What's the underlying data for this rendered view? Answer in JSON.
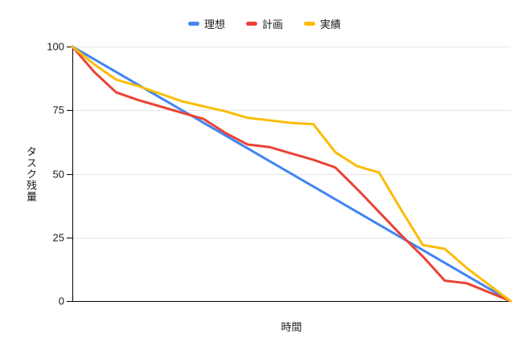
{
  "chart_data": {
    "type": "line",
    "title": "",
    "xlabel": "時間",
    "ylabel": "タスク残量",
    "x": [
      0,
      1,
      2,
      3,
      4,
      5,
      6,
      7,
      8,
      9,
      10,
      11,
      12,
      13,
      14,
      15,
      16,
      17,
      18,
      19,
      20
    ],
    "x_tick_labels_visible": false,
    "y_ticks": [
      0,
      25,
      50,
      75,
      100
    ],
    "ylim": [
      0,
      100
    ],
    "grid": true,
    "legend_position": "top",
    "series": [
      {
        "name": "理想",
        "color": "#4285F4",
        "values": [
          100,
          95,
          90,
          85,
          80,
          75,
          70,
          65,
          60,
          55,
          50,
          45,
          40,
          35,
          30,
          25,
          20,
          15,
          10,
          5,
          0
        ]
      },
      {
        "name": "計画",
        "color": "#EA4335",
        "values": [
          100,
          90,
          82,
          79,
          76.5,
          74,
          71.5,
          66,
          61.5,
          60.5,
          58,
          55.5,
          52.5,
          44,
          35,
          26,
          17.5,
          8,
          7,
          3.5,
          0
        ]
      },
      {
        "name": "実績",
        "color": "#FBBC04",
        "values": [
          100,
          93,
          87,
          84.5,
          81.5,
          78.5,
          76.5,
          74.5,
          72,
          71,
          70,
          69.5,
          58.5,
          53,
          50.5,
          36,
          22,
          20.5,
          13,
          6.5,
          0
        ]
      }
    ]
  },
  "colors": {
    "background": "#ffffff",
    "grid": "#e6e6e6",
    "axis": "#000000",
    "tick_label": "#1a1a1a"
  }
}
